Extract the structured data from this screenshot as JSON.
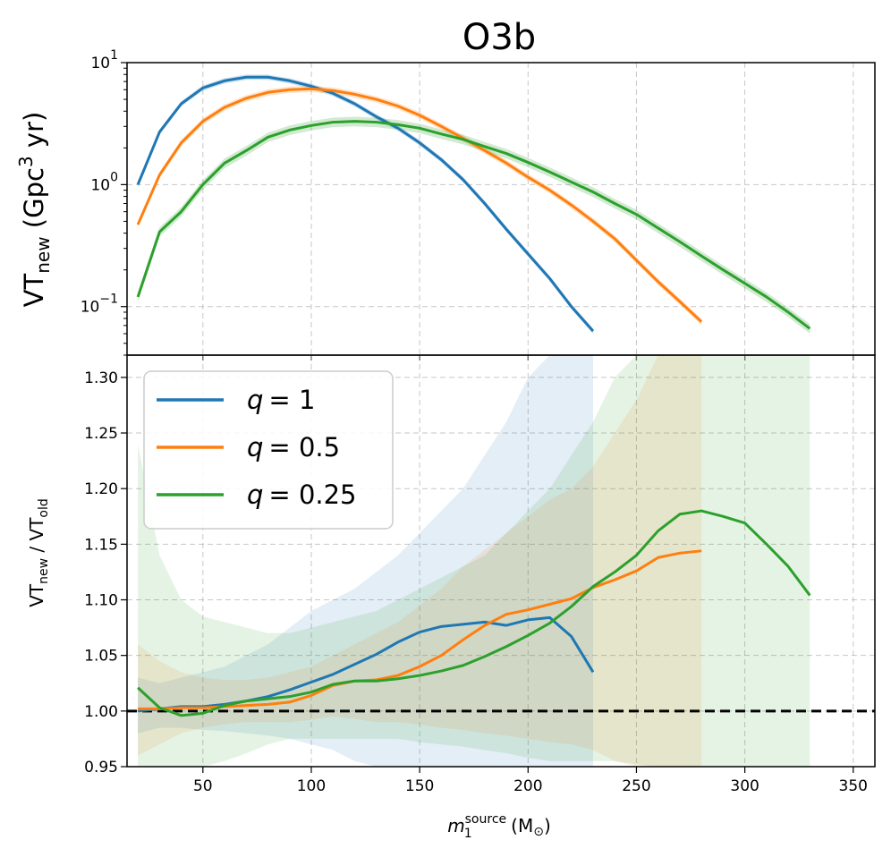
{
  "title": "O3b",
  "colors": {
    "q1": "#1f77b4",
    "q05": "#ff7f0e",
    "q025": "#2ca02c",
    "grid": "#b0b0b0",
    "baseline": "#000000"
  },
  "chart_data": [
    {
      "type": "line",
      "panel": "top",
      "title": "O3b",
      "ylabel": "VT_new (Gpc^3 yr)",
      "ylabel_parts": {
        "main": "VT",
        "sub": "new",
        "open": " (Gpc",
        "sup": "3",
        "close": " yr)"
      },
      "yscale": "log",
      "ylim": [
        0.04,
        10
      ],
      "xlim": [
        15,
        360
      ],
      "yticks": [
        {
          "value": 0.1,
          "base": "10",
          "exp": "−1"
        },
        {
          "value": 1,
          "base": "10",
          "exp": "0"
        },
        {
          "value": 10,
          "base": "10",
          "exp": "1"
        }
      ],
      "grid": true,
      "series": [
        {
          "name": "q = 1",
          "color": "#1f77b4",
          "x": [
            20,
            30,
            40,
            50,
            60,
            70,
            80,
            90,
            100,
            110,
            120,
            130,
            140,
            150,
            160,
            170,
            180,
            190,
            200,
            210,
            220,
            230
          ],
          "y": [
            1.0,
            2.7,
            4.6,
            6.2,
            7.1,
            7.6,
            7.6,
            7.1,
            6.4,
            5.6,
            4.6,
            3.6,
            2.9,
            2.2,
            1.6,
            1.1,
            0.7,
            0.43,
            0.27,
            0.17,
            0.1,
            0.063
          ],
          "band": 0.05
        },
        {
          "name": "q = 0.5",
          "color": "#ff7f0e",
          "x": [
            20,
            30,
            40,
            50,
            60,
            70,
            80,
            90,
            100,
            110,
            120,
            130,
            140,
            150,
            160,
            170,
            180,
            190,
            200,
            210,
            220,
            230,
            240,
            250,
            260,
            270,
            280
          ],
          "y": [
            0.47,
            1.2,
            2.2,
            3.3,
            4.3,
            5.1,
            5.7,
            6.0,
            6.1,
            5.9,
            5.5,
            5.0,
            4.4,
            3.7,
            3.0,
            2.4,
            1.9,
            1.5,
            1.15,
            0.9,
            0.68,
            0.5,
            0.36,
            0.24,
            0.16,
            0.11,
            0.075
          ],
          "band": 0.06
        },
        {
          "name": "q = 0.25",
          "color": "#2ca02c",
          "x": [
            20,
            30,
            40,
            50,
            60,
            70,
            80,
            90,
            100,
            110,
            120,
            130,
            140,
            150,
            160,
            170,
            180,
            190,
            200,
            210,
            220,
            230,
            240,
            250,
            260,
            270,
            280,
            290,
            300,
            310,
            320,
            330
          ],
          "y": [
            0.12,
            0.41,
            0.6,
            1.0,
            1.5,
            1.9,
            2.45,
            2.8,
            3.05,
            3.25,
            3.3,
            3.25,
            3.1,
            2.9,
            2.6,
            2.35,
            2.05,
            1.8,
            1.52,
            1.27,
            1.05,
            0.87,
            0.7,
            0.57,
            0.44,
            0.34,
            0.26,
            0.2,
            0.155,
            0.12,
            0.09,
            0.066
          ],
          "band": 0.09
        }
      ]
    },
    {
      "type": "line",
      "panel": "bottom",
      "ylabel": "VT_new / VT_old",
      "ylabel_parts": {
        "a": "VT",
        "asub": "new",
        "sep": " / ",
        "b": "VT",
        "bsub": "old"
      },
      "xlabel": "m_1^source (M_⊙)",
      "xlabel_parts": {
        "m": "m",
        "sub": "1",
        "sup": "source",
        "rest": "(M",
        "odot": "⊙",
        "close": ")"
      },
      "ylim": [
        0.95,
        1.32
      ],
      "xlim": [
        15,
        360
      ],
      "yticks": [
        0.95,
        1.0,
        1.05,
        1.1,
        1.15,
        1.2,
        1.25,
        1.3
      ],
      "ytick_labels": [
        "0.95",
        "1.00",
        "1.05",
        "1.10",
        "1.15",
        "1.20",
        "1.25",
        "1.30"
      ],
      "xticks": [
        50,
        100,
        150,
        200,
        250,
        300,
        350
      ],
      "xtick_labels": [
        "50",
        "100",
        "150",
        "200",
        "250",
        "300",
        "350"
      ],
      "baseline": 1.0,
      "grid": true,
      "legend": {
        "placement": "top-left"
      },
      "series": [
        {
          "name": "q = 1",
          "legend_var": "q",
          "legend_value": "= 1",
          "color": "#1f77b4",
          "x": [
            20,
            30,
            40,
            50,
            60,
            70,
            80,
            90,
            100,
            110,
            120,
            130,
            140,
            150,
            160,
            170,
            180,
            190,
            200,
            210,
            220,
            230
          ],
          "y": [
            1.0,
            1.002,
            1.004,
            1.004,
            1.006,
            1.009,
            1.013,
            1.019,
            1.026,
            1.033,
            1.042,
            1.051,
            1.062,
            1.071,
            1.076,
            1.078,
            1.08,
            1.077,
            1.082,
            1.084,
            1.067,
            1.035
          ],
          "lower": [
            0.98,
            0.985,
            0.985,
            0.983,
            0.982,
            0.98,
            0.978,
            0.975,
            0.97,
            0.965,
            0.955,
            0.95,
            0.95,
            0.95,
            0.95,
            0.95,
            0.95,
            0.95,
            0.95,
            0.95,
            0.95,
            0.95
          ],
          "upper": [
            1.03,
            1.025,
            1.03,
            1.035,
            1.04,
            1.05,
            1.06,
            1.075,
            1.09,
            1.1,
            1.11,
            1.125,
            1.14,
            1.16,
            1.18,
            1.2,
            1.23,
            1.26,
            1.3,
            1.32,
            1.32,
            1.32
          ]
        },
        {
          "name": "q = 0.5",
          "legend_var": "q",
          "legend_value": "= 0.5",
          "color": "#ff7f0e",
          "x": [
            20,
            30,
            40,
            50,
            60,
            70,
            80,
            90,
            100,
            110,
            120,
            130,
            140,
            150,
            160,
            170,
            180,
            190,
            200,
            210,
            220,
            230,
            240,
            250,
            260,
            270,
            280
          ],
          "y": [
            1.002,
            1.002,
            1.003,
            1.003,
            1.004,
            1.005,
            1.006,
            1.008,
            1.014,
            1.023,
            1.027,
            1.028,
            1.032,
            1.04,
            1.05,
            1.064,
            1.077,
            1.087,
            1.091,
            1.096,
            1.101,
            1.111,
            1.118,
            1.126,
            1.138,
            1.142,
            1.144
          ],
          "lower": [
            0.96,
            0.97,
            0.98,
            0.985,
            0.988,
            0.99,
            0.99,
            0.99,
            0.992,
            0.995,
            0.993,
            0.99,
            0.99,
            0.988,
            0.985,
            0.983,
            0.98,
            0.978,
            0.975,
            0.972,
            0.97,
            0.965,
            0.955,
            0.95,
            0.95,
            0.95,
            0.95
          ],
          "upper": [
            1.06,
            1.045,
            1.035,
            1.03,
            1.028,
            1.028,
            1.03,
            1.035,
            1.04,
            1.05,
            1.06,
            1.07,
            1.08,
            1.095,
            1.11,
            1.13,
            1.145,
            1.16,
            1.175,
            1.19,
            1.2,
            1.22,
            1.25,
            1.28,
            1.32,
            1.32,
            1.32
          ]
        },
        {
          "name": "q = 0.25",
          "legend_var": "q",
          "legend_value": "= 0.25",
          "color": "#2ca02c",
          "x": [
            20,
            30,
            40,
            50,
            60,
            70,
            80,
            90,
            100,
            110,
            120,
            130,
            140,
            150,
            160,
            170,
            180,
            190,
            200,
            210,
            220,
            230,
            240,
            250,
            260,
            270,
            280,
            290,
            300,
            310,
            320,
            330
          ],
          "y": [
            1.021,
            1.003,
            0.996,
            0.998,
            1.005,
            1.009,
            1.011,
            1.013,
            1.017,
            1.024,
            1.027,
            1.027,
            1.029,
            1.032,
            1.036,
            1.041,
            1.049,
            1.058,
            1.068,
            1.079,
            1.094,
            1.112,
            1.125,
            1.14,
            1.162,
            1.177,
            1.18,
            1.175,
            1.169,
            1.15,
            1.13,
            1.104
          ],
          "lower": [
            0.95,
            0.95,
            0.95,
            0.95,
            0.955,
            0.962,
            0.97,
            0.975,
            0.975,
            0.975,
            0.975,
            0.975,
            0.975,
            0.972,
            0.97,
            0.968,
            0.965,
            0.962,
            0.958,
            0.955,
            0.955,
            0.955,
            0.955,
            0.952,
            0.95,
            0.95,
            0.95,
            0.95,
            0.95,
            0.95,
            0.95,
            0.95
          ],
          "upper": [
            1.24,
            1.14,
            1.1,
            1.085,
            1.08,
            1.075,
            1.07,
            1.07,
            1.075,
            1.08,
            1.085,
            1.09,
            1.1,
            1.11,
            1.12,
            1.13,
            1.14,
            1.16,
            1.18,
            1.2,
            1.23,
            1.26,
            1.3,
            1.32,
            1.32,
            1.32,
            1.32,
            1.32,
            1.32,
            1.32,
            1.32,
            1.32
          ]
        }
      ]
    }
  ]
}
